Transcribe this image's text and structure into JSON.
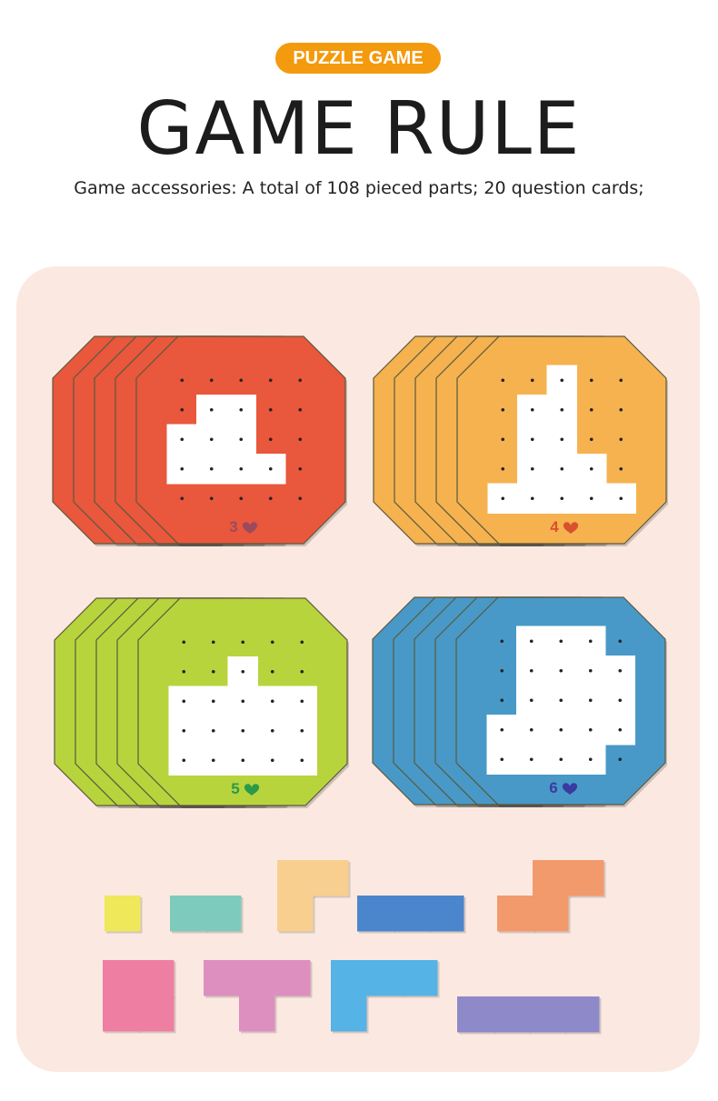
{
  "header": {
    "badge": "PUZZLE GAME",
    "title": "GAME RULE",
    "subtitle": "Game accessories: A total of 108 pieced parts; 20 question cards;"
  },
  "colors": {
    "badge": "#f39a0e",
    "panel": "#fbe9e1"
  },
  "cards": [
    {
      "level": "3",
      "color": "#e9573c",
      "label_color": "#9a4a5e"
    },
    {
      "level": "4",
      "color": "#f6b24f",
      "label_color": "#d8512e"
    },
    {
      "level": "5",
      "color": "#b8d43d",
      "label_color": "#2a9a4a"
    },
    {
      "level": "6",
      "color": "#4899c8",
      "label_color": "#3a3aa0"
    }
  ],
  "pieces": [
    {
      "name": "monomino",
      "color": "#eee85a"
    },
    {
      "name": "domino",
      "color": "#7ecbbd"
    },
    {
      "name": "l-tromino",
      "color": "#f8cf8e"
    },
    {
      "name": "i-tromino",
      "color": "#4b86cc"
    },
    {
      "name": "s-tetromino",
      "color": "#f29a6c"
    },
    {
      "name": "o-tetromino",
      "color": "#ee7fa2"
    },
    {
      "name": "t-tetromino",
      "color": "#dd8fc0"
    },
    {
      "name": "l-tetromino",
      "color": "#55b3e6"
    },
    {
      "name": "i-tetromino",
      "color": "#8e89c8"
    }
  ]
}
